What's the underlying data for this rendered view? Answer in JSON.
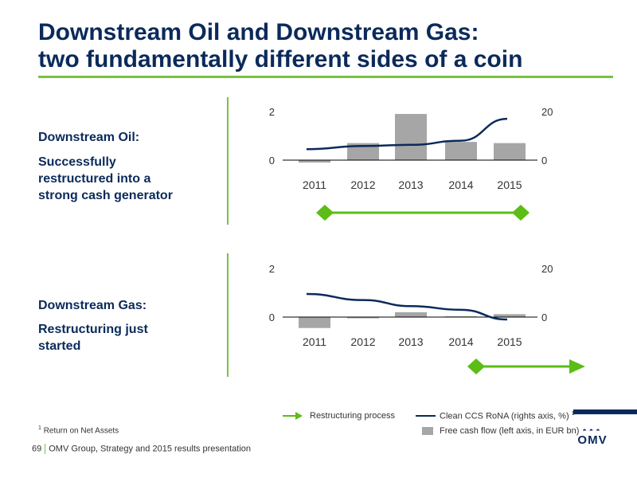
{
  "title": {
    "line1": "Downstream Oil and Downstream Gas:",
    "line2": "two fundamentally different sides of a coin"
  },
  "sections": [
    {
      "heading": "Downstream Oil:",
      "desc_line1": "Successfully",
      "desc_line2": "restructured into a",
      "desc_line3": "strong cash generator"
    },
    {
      "heading": "Downstream Gas:",
      "desc_line1": "Restructuring just",
      "desc_line2": "started",
      "desc_line3": ""
    }
  ],
  "chart_data": [
    {
      "type": "bar",
      "categories": [
        "2011",
        "2012",
        "2013",
        "2014",
        "2015"
      ],
      "series": [
        {
          "name": "Free cash flow (left axis, in EUR bn)",
          "type": "bar",
          "axis": "left",
          "values": [
            -0.1,
            0.7,
            1.9,
            0.75,
            0.7
          ]
        },
        {
          "name": "Clean CCS RoNA (rights axis, %)",
          "type": "line",
          "axis": "right",
          "values": [
            4.5,
            5.8,
            6.3,
            8,
            17
          ]
        }
      ],
      "y_left_ticks": [
        "2",
        "0"
      ],
      "y_right_ticks": [
        "20",
        "0"
      ],
      "ylim_left": [
        -1,
        2
      ],
      "ylim_right": [
        -10,
        20
      ],
      "restructuring_arrow": {
        "from": "2011",
        "to": "2015",
        "style": "both-ends"
      },
      "colors": {
        "bar": "#a6a6a6",
        "line": "#0b2a5b",
        "arrow": "#5bbd16"
      }
    },
    {
      "type": "bar",
      "categories": [
        "2011",
        "2012",
        "2013",
        "2014",
        "2015"
      ],
      "series": [
        {
          "name": "Free cash flow (left axis, in EUR bn)",
          "type": "bar",
          "axis": "left",
          "values": [
            -0.45,
            -0.05,
            0.2,
            0.03,
            0.12
          ]
        },
        {
          "name": "Clean CCS RoNA (rights axis, %)",
          "type": "line",
          "axis": "right",
          "values": [
            9.5,
            7,
            4.5,
            3,
            -1
          ]
        }
      ],
      "y_left_ticks": [
        "2",
        "0"
      ],
      "y_right_ticks": [
        "20",
        "0"
      ],
      "ylim_left": [
        -1,
        2
      ],
      "ylim_right": [
        -10,
        20
      ],
      "restructuring_arrow": {
        "from": "2014",
        "to": "beyond 2015",
        "style": "start-diamond-end-arrow"
      },
      "colors": {
        "bar": "#a6a6a6",
        "line": "#0b2a5b",
        "arrow": "#5bbd16"
      }
    }
  ],
  "legend": {
    "restructuring": "Restructuring process",
    "rona": "Clean CCS RoNA (rights axis, %)",
    "rona_sup": "1",
    "fcf": "Free cash flow (left axis, in EUR bn)"
  },
  "footnote": {
    "sup": "1",
    "text": "Return on Net Assets"
  },
  "footer": {
    "page": "69",
    "text": "OMV Group, Strategy and 2015 results presentation"
  },
  "logo": {
    "text": "OMV"
  },
  "colors": {
    "title": "#0b2a5b",
    "accent": "#7ac143",
    "arrow": "#5bbd16",
    "bar": "#a6a6a6",
    "line": "#0b2a5b"
  }
}
